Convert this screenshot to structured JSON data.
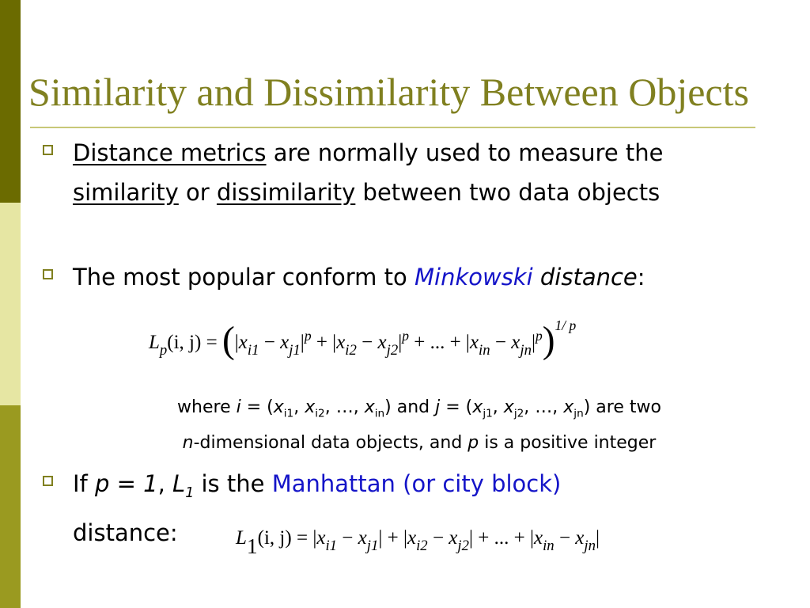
{
  "colors": {
    "sidebar_top": "#6b6b00",
    "sidebar_mid": "#e6e6a3",
    "sidebar_bottom": "#9a9a20",
    "title": "#808020",
    "rule": "#c8c878",
    "bullet": "#808020",
    "highlight": "#1414c8"
  },
  "slide": {
    "title": "Similarity and Dissimilarity Between Objects"
  },
  "bullets": {
    "b1": {
      "term1": "Distance metrics",
      "text1": " are normally used to measure the ",
      "term2": "similarity",
      "text2": " or ",
      "term3": "dissimilarity",
      "text3": " between two data objects"
    },
    "b2": {
      "text1": "The most popular conform to ",
      "highlight": "Minkowski",
      "text2": " ",
      "italic": "distance",
      "text3": ":"
    },
    "b3": {
      "text1": "If ",
      "italic1": "p = 1",
      "text2": ", ",
      "italic2": "L",
      "sub": "1",
      "text3": " is the ",
      "highlight": "Manhattan (or city block)",
      "text4": " distance:"
    }
  },
  "where": {
    "t1": "where ",
    "i": "i",
    "t2": " = (",
    "x1": "x",
    "s1": "i1",
    "t3": ", ",
    "x2": "x",
    "s2": "i2",
    "t4": ", …, ",
    "x3": "x",
    "s3": "in",
    "t5": ") and ",
    "j": "j",
    "t6": " = (",
    "x4": "x",
    "s4": "j1",
    "t7": ", ",
    "x5": "x",
    "s5": "j2",
    "t8": ", …, ",
    "x6": "x",
    "s6": "jn",
    "t9": ") are two",
    "n": "n",
    "t10": "-dimensional data objects, and ",
    "p": "p",
    "t11": " is a positive integer"
  },
  "formula_minkowski": {
    "lhs": "L",
    "lhs_sub": "p",
    "args": "(i, j)",
    "eq": " = ",
    "lparen": "(",
    "bar": "|",
    "x": "x",
    "minus": " − ",
    "plus": " + ",
    "dots": " + ... + ",
    "i1": "i1",
    "j1": "j1",
    "i2": "i2",
    "j2": "j2",
    "in": "in",
    "jn": "jn",
    "p": "p",
    "rparen": ")",
    "outer_exp": "1/ p"
  },
  "formula_manhattan": {
    "lhs": "L",
    "lhs_sub": "1",
    "args": "(i, j)",
    "eq": " = ",
    "bar": "|",
    "x": "x",
    "minus": " − ",
    "plus": " + ",
    "dots": " + ... + ",
    "i1": "i1",
    "j1": "j1",
    "i2": "i2",
    "j2": "j2",
    "in": "in",
    "jn": "jn"
  }
}
